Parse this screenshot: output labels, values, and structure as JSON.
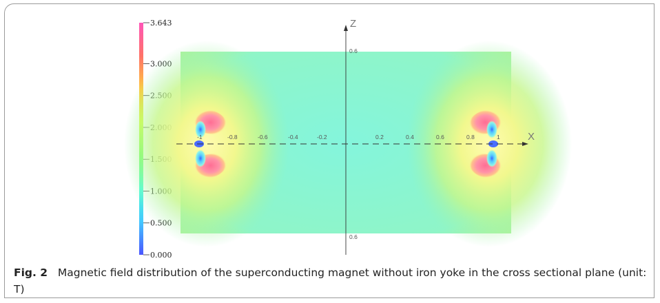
{
  "figure": {
    "colorbar": {
      "ticks": [
        "0.000",
        "0.500",
        "1.000",
        "1.500",
        "2.000",
        "2.500",
        "3.000",
        "3.643"
      ],
      "tick_values": [
        0,
        0.5,
        1.0,
        1.5,
        2.0,
        2.5,
        3.0,
        3.643
      ],
      "min": 0,
      "max": 3.643,
      "colors": [
        "#4a55ff",
        "#44c8ff",
        "#52ffd6",
        "#7cff66",
        "#d7ff42",
        "#ffc840",
        "#ff7268",
        "#ff55b8"
      ]
    },
    "axes": {
      "x_name": "X",
      "z_name": "Z",
      "x_ticks_negative": [
        "-1",
        "-0.8",
        "-0.6",
        "-0.4",
        "-0.2"
      ],
      "x_ticks_positive": [
        "0.2",
        "0.4",
        "0.6",
        "0.8",
        "1"
      ],
      "z_top_label": "0.6",
      "z_bottom_label": "0.6"
    },
    "field_colors": {
      "background": "#86f6da",
      "mid": "#9ef59a",
      "high": "#f6f7a0",
      "peak": "#ff88a0",
      "hole": "#5fd8ff",
      "center": "#4a6cff"
    }
  },
  "caption": {
    "label": "Fig. 2",
    "text": "Magnetic field distribution of the superconducting magnet without iron yoke in the cross sectional plane (unit: T)"
  }
}
